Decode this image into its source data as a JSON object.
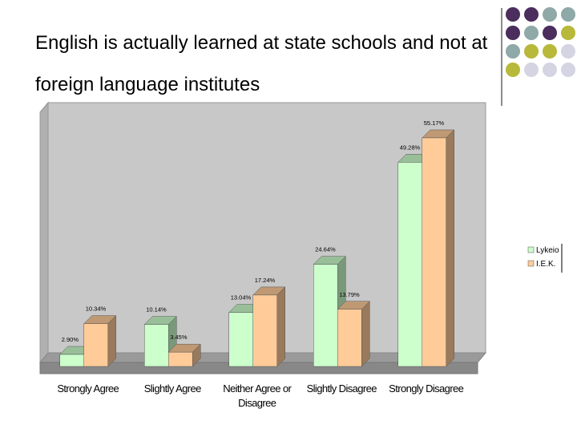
{
  "chart_data": {
    "type": "bar",
    "title": "English is actually learned at state schools and not at foreign language institutes",
    "categories": [
      "Strongly Agree",
      "Slightly Agree",
      "Neither Agree or Disagree",
      "Slightly Disagree",
      "Strongly Disagree"
    ],
    "series": [
      {
        "name": "Lykeio",
        "color": "#ccffcc",
        "values": [
          2.9,
          10.14,
          13.04,
          24.64,
          49.28
        ],
        "value_labels": [
          "2.90%",
          "10.14%",
          "13.04%",
          "24.64%",
          "49.28%"
        ]
      },
      {
        "name": "I.E.K.",
        "color": "#ffcc99",
        "values": [
          10.34,
          3.45,
          17.24,
          13.79,
          55.17
        ],
        "value_labels": [
          "10.34%",
          "3.45%",
          "17.24%",
          "13.79%",
          "55.17%"
        ]
      }
    ],
    "ylim": [
      0,
      60
    ],
    "legend": "right"
  }
}
